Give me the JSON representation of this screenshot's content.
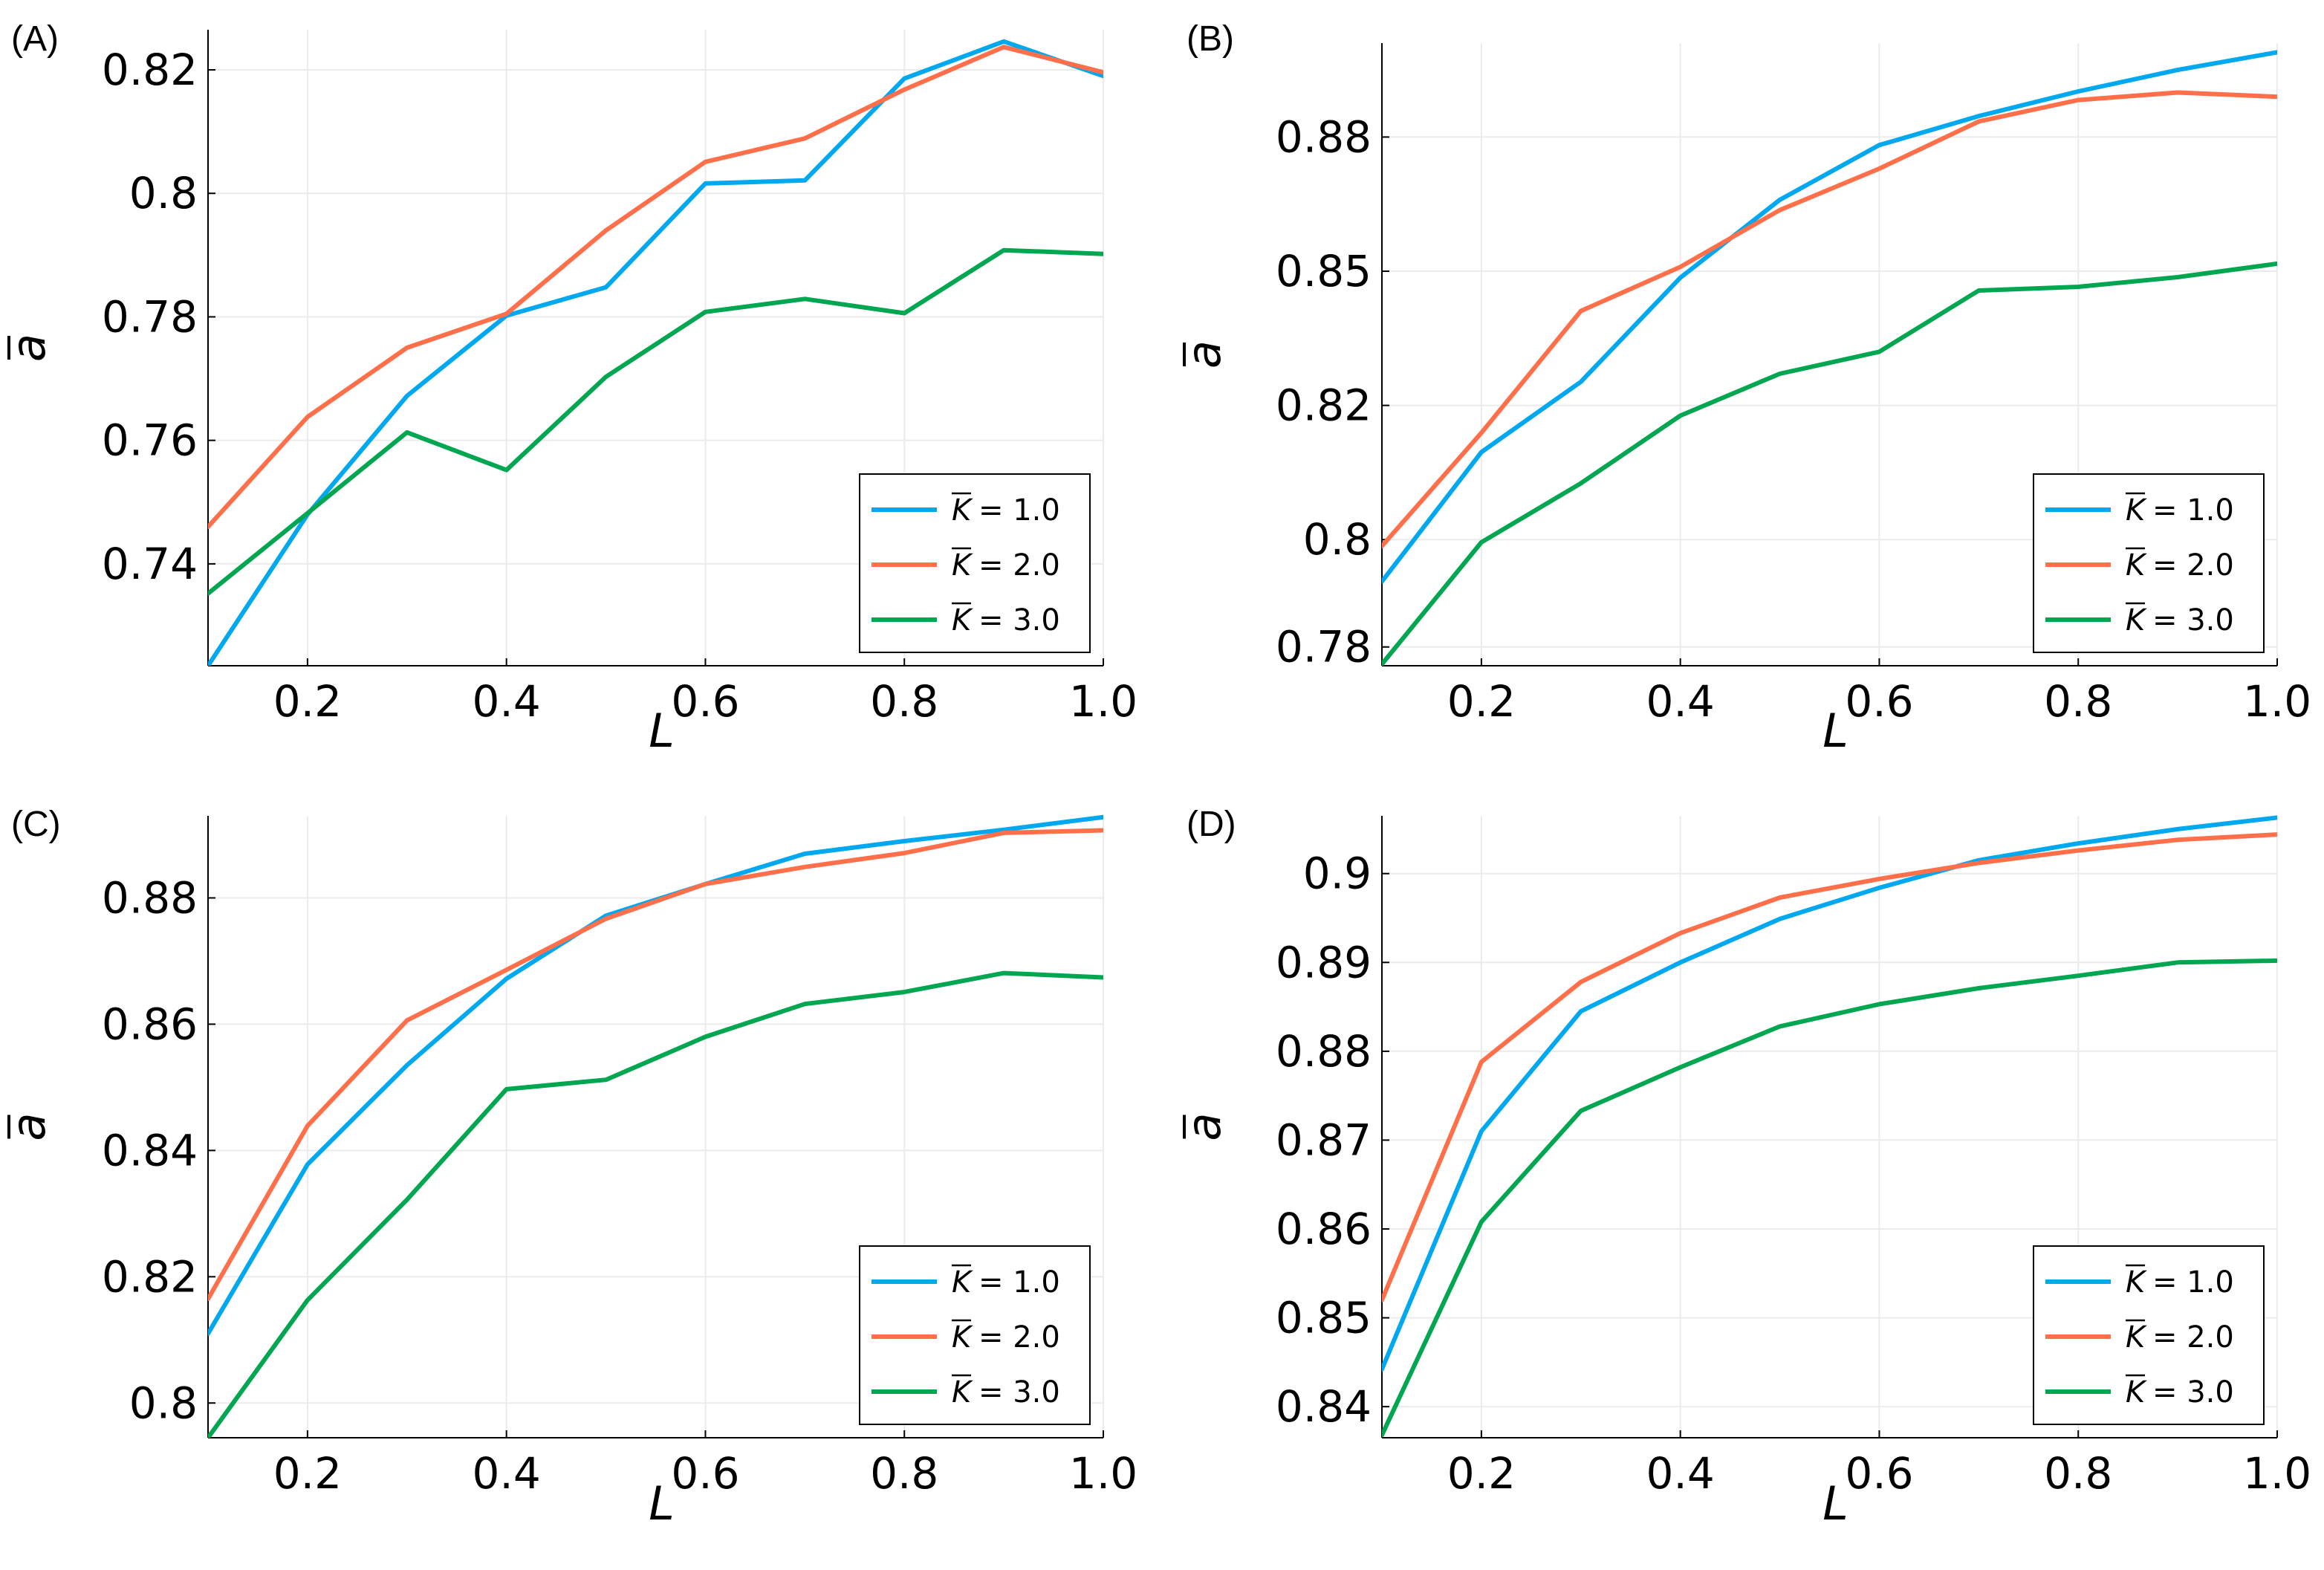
{
  "figure": {
    "x_axis_label": "L",
    "y_axis_symbol": "a",
    "legend_entries": [
      {
        "symbol": "K",
        "text": "= 1.0",
        "color": "#00a8f0"
      },
      {
        "symbol": "K",
        "text": "= 2.0",
        "color": "#ff6f4a"
      },
      {
        "symbol": "K",
        "text": "= 3.0",
        "color": "#00a650"
      }
    ]
  },
  "chart_data": [
    {
      "type": "line",
      "panel": "(A)",
      "xlabel": "L",
      "ylabel": "a",
      "xlim": [
        0.1,
        1.0
      ],
      "ylim": [
        0.7235,
        0.8265
      ],
      "xticks": [
        0.2,
        0.4,
        0.6,
        0.8,
        1.0
      ],
      "xtick_labels": [
        "0.2",
        "0.4",
        "0.6",
        "0.8",
        "1.0"
      ],
      "yticks": [
        0.74,
        0.76,
        0.78,
        0.8,
        0.82
      ],
      "ytick_labels": [
        "0.74",
        "0.76",
        "0.78",
        "0.8",
        "0.82"
      ],
      "legend": "bottom-right",
      "x": [
        0.1,
        0.2,
        0.3,
        0.4,
        0.5,
        0.6,
        0.7,
        0.8,
        0.9,
        1.0
      ],
      "series": [
        {
          "name": "K = 1.0",
          "color": "#00a8f0",
          "values": [
            0.7235,
            0.748,
            0.7672,
            0.7802,
            0.7848,
            0.8016,
            0.8021,
            0.8186,
            0.8246,
            0.819
          ]
        },
        {
          "name": "K = 2.0",
          "color": "#ff6f4a",
          "values": [
            0.746,
            0.7638,
            0.775,
            0.7805,
            0.794,
            0.8051,
            0.8089,
            0.8168,
            0.8237,
            0.8196
          ]
        },
        {
          "name": "K = 3.0",
          "color": "#00a650",
          "values": [
            0.7352,
            0.7482,
            0.7613,
            0.7552,
            0.7703,
            0.7808,
            0.7829,
            0.7806,
            0.7908,
            0.7902
          ]
        }
      ]
    },
    {
      "type": "line",
      "panel": "(B)",
      "xlabel": "L",
      "ylabel": "a",
      "xlim": [
        0.1,
        1.0
      ],
      "ylim": [
        0.7765,
        0.8925
      ],
      "xticks": [
        0.2,
        0.4,
        0.6,
        0.8,
        1.0
      ],
      "xtick_labels": [
        "0.2",
        "0.4",
        "0.6",
        "0.8",
        "1.0"
      ],
      "yticks": [
        0.78,
        0.8,
        0.825,
        0.85,
        0.875
      ],
      "ytick_labels": [
        "0.78",
        "0.8",
        "0.82",
        "0.85",
        "0.88"
      ],
      "legend": "bottom-right",
      "x": [
        0.1,
        0.2,
        0.3,
        0.4,
        0.5,
        0.6,
        0.7,
        0.8,
        0.9,
        1.0
      ],
      "series": [
        {
          "name": "K = 1.0",
          "color": "#00a8f0",
          "values": [
            0.7922,
            0.8163,
            0.8294,
            0.8488,
            0.8633,
            0.8735,
            0.8789,
            0.8835,
            0.8875,
            0.8908
          ]
        },
        {
          "name": "K = 2.0",
          "color": "#ff6f4a",
          "values": [
            0.7988,
            0.8199,
            0.8426,
            0.8508,
            0.8614,
            0.8691,
            0.8779,
            0.8819,
            0.8833,
            0.8825
          ]
        },
        {
          "name": "K = 3.0",
          "color": "#00a650",
          "values": [
            0.7768,
            0.7995,
            0.8105,
            0.8231,
            0.8309,
            0.835,
            0.8464,
            0.8471,
            0.8489,
            0.8514
          ]
        }
      ]
    },
    {
      "type": "line",
      "panel": "(C)",
      "xlabel": "L",
      "ylabel": "a",
      "xlim": [
        0.1,
        1.0
      ],
      "ylim": [
        0.7945,
        0.893
      ],
      "xticks": [
        0.2,
        0.4,
        0.6,
        0.8,
        1.0
      ],
      "xtick_labels": [
        "0.2",
        "0.4",
        "0.6",
        "0.8",
        "1.0"
      ],
      "yticks": [
        0.8,
        0.82,
        0.84,
        0.86,
        0.88
      ],
      "ytick_labels": [
        "0.8",
        "0.82",
        "0.84",
        "0.86",
        "0.88"
      ],
      "legend": "bottom-right",
      "x": [
        0.1,
        0.2,
        0.3,
        0.4,
        0.5,
        0.6,
        0.7,
        0.8,
        0.9,
        1.0
      ],
      "series": [
        {
          "name": "K = 1.0",
          "color": "#00a8f0",
          "values": [
            0.811,
            0.8378,
            0.8535,
            0.8672,
            0.8772,
            0.8822,
            0.887,
            0.889,
            0.8908,
            0.8928
          ]
        },
        {
          "name": "K = 2.0",
          "color": "#ff6f4a",
          "values": [
            0.8165,
            0.8439,
            0.8606,
            0.8686,
            0.8767,
            0.8822,
            0.8849,
            0.8871,
            0.8903,
            0.8907
          ]
        },
        {
          "name": "K = 3.0",
          "color": "#00a650",
          "values": [
            0.7945,
            0.8163,
            0.8322,
            0.8497,
            0.8512,
            0.858,
            0.8632,
            0.8651,
            0.8681,
            0.8674
          ]
        }
      ]
    },
    {
      "type": "line",
      "panel": "(D)",
      "xlabel": "L",
      "ylabel": "a",
      "xlim": [
        0.1,
        1.0
      ],
      "ylim": [
        0.8365,
        0.9065
      ],
      "xticks": [
        0.2,
        0.4,
        0.6,
        0.8,
        1.0
      ],
      "xtick_labels": [
        "0.2",
        "0.4",
        "0.6",
        "0.8",
        "1.0"
      ],
      "yticks": [
        0.84,
        0.85,
        0.86,
        0.87,
        0.88,
        0.89,
        0.9
      ],
      "ytick_labels": [
        "0.84",
        "0.85",
        "0.86",
        "0.87",
        "0.88",
        "0.89",
        "0.9"
      ],
      "legend": "bottom-right",
      "x": [
        0.1,
        0.2,
        0.3,
        0.4,
        0.5,
        0.6,
        0.7,
        0.8,
        0.9,
        1.0
      ],
      "series": [
        {
          "name": "K = 1.0",
          "color": "#00a8f0",
          "values": [
            0.8442,
            0.871,
            0.8845,
            0.89,
            0.8949,
            0.8984,
            0.9015,
            0.9034,
            0.905,
            0.9063
          ]
        },
        {
          "name": "K = 2.0",
          "color": "#ff6f4a",
          "values": [
            0.852,
            0.8788,
            0.8878,
            0.8933,
            0.8973,
            0.8994,
            0.9012,
            0.9026,
            0.9038,
            0.9044
          ]
        },
        {
          "name": "K = 3.0",
          "color": "#00a650",
          "values": [
            0.8368,
            0.8608,
            0.8733,
            0.8782,
            0.8828,
            0.8853,
            0.8871,
            0.8885,
            0.89,
            0.8902
          ]
        }
      ]
    }
  ]
}
